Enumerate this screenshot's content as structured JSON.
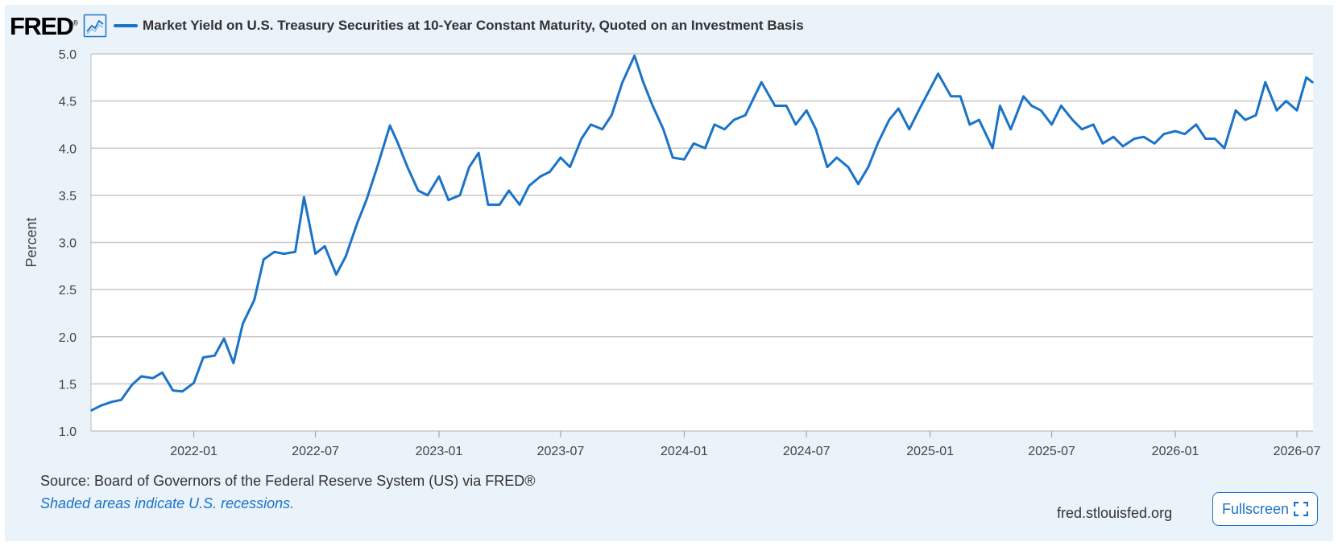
{
  "header": {
    "logo": "FRED",
    "logo_mark": "®",
    "graph_icon": "line-chart-icon",
    "title": "Market Yield on U.S. Treasury Securities at 10-Year Constant Maturity, Quoted on an Investment Basis"
  },
  "footer": {
    "source": "Source: Board of Governors of the Federal Reserve System (US) via FRED®",
    "note": "Shaded areas indicate U.S. recessions.",
    "site": "fred.stlouisfed.org",
    "fullscreen_label": "Fullscreen",
    "fullscreen_icon": "expand-icon"
  },
  "colors": {
    "series": "#1a73c8",
    "background": "#eaf2fa",
    "plot_background": "#ffffff",
    "grid": "#c8c8c8"
  },
  "chart_data": {
    "type": "line",
    "title": "Market Yield on U.S. Treasury Securities at 10-Year Constant Maturity, Quoted on an Investment Basis",
    "xlabel": "",
    "ylabel": "Percent",
    "ylim": [
      1.0,
      5.0
    ],
    "yticks": [
      "1.0",
      "1.5",
      "2.0",
      "2.5",
      "3.0",
      "3.5",
      "4.0",
      "4.5",
      "5.0"
    ],
    "xlim": [
      "2021-08-01",
      "2026-07-25"
    ],
    "xticks": [
      "2022-01",
      "2022-07",
      "2023-01",
      "2023-07",
      "2024-01",
      "2024-07",
      "2025-01",
      "2025-07",
      "2026-01",
      "2026-07"
    ],
    "grid": true,
    "legend": "top-left",
    "series": [
      {
        "name": "Market Yield on U.S. Treasury Securities at 10-Year Constant Maturity, Quoted on an Investment Basis",
        "x": [
          "2021-08-02",
          "2021-08-16",
          "2021-09-01",
          "2021-09-15",
          "2021-10-01",
          "2021-10-15",
          "2021-11-01",
          "2021-11-15",
          "2021-12-01",
          "2021-12-15",
          "2022-01-01",
          "2022-01-15",
          "2022-02-01",
          "2022-02-15",
          "2022-03-01",
          "2022-03-15",
          "2022-04-01",
          "2022-04-15",
          "2022-05-01",
          "2022-05-15",
          "2022-06-01",
          "2022-06-14",
          "2022-07-01",
          "2022-07-15",
          "2022-08-01",
          "2022-08-15",
          "2022-09-01",
          "2022-09-15",
          "2022-10-01",
          "2022-10-20",
          "2022-11-01",
          "2022-11-15",
          "2022-12-01",
          "2022-12-15",
          "2023-01-01",
          "2023-01-15",
          "2023-02-01",
          "2023-02-15",
          "2023-03-01",
          "2023-03-15",
          "2023-04-01",
          "2023-04-15",
          "2023-05-01",
          "2023-05-15",
          "2023-06-01",
          "2023-06-15",
          "2023-07-01",
          "2023-07-15",
          "2023-08-01",
          "2023-08-15",
          "2023-09-01",
          "2023-09-15",
          "2023-10-01",
          "2023-10-19",
          "2023-11-01",
          "2023-11-15",
          "2023-12-01",
          "2023-12-15",
          "2024-01-01",
          "2024-01-15",
          "2024-02-01",
          "2024-02-15",
          "2024-03-01",
          "2024-03-15",
          "2024-04-01",
          "2024-04-25",
          "2024-05-15",
          "2024-06-01",
          "2024-06-15",
          "2024-07-01",
          "2024-07-15",
          "2024-08-01",
          "2024-08-15",
          "2024-09-01",
          "2024-09-16",
          "2024-10-01",
          "2024-10-15",
          "2024-11-01",
          "2024-11-15",
          "2024-12-01",
          "2024-12-15",
          "2025-01-13",
          "2025-02-01",
          "2025-02-15",
          "2025-03-01",
          "2025-03-15",
          "2025-04-04",
          "2025-04-15",
          "2025-05-01",
          "2025-05-20",
          "2025-06-01",
          "2025-06-15",
          "2025-07-01",
          "2025-07-15",
          "2025-08-01",
          "2025-08-15",
          "2025-09-01",
          "2025-09-15",
          "2025-10-01",
          "2025-10-15",
          "2025-11-01",
          "2025-11-15",
          "2025-12-01",
          "2025-12-15",
          "2026-01-01",
          "2026-01-15",
          "2026-02-01",
          "2026-02-15",
          "2026-03-01",
          "2026-03-15",
          "2026-04-01",
          "2026-04-15",
          "2026-05-01",
          "2026-05-15",
          "2026-06-01",
          "2026-06-15",
          "2026-07-01",
          "2026-07-15",
          "2026-07-24"
        ],
        "values": [
          1.22,
          1.27,
          1.31,
          1.33,
          1.49,
          1.58,
          1.56,
          1.62,
          1.43,
          1.42,
          1.51,
          1.78,
          1.8,
          1.98,
          1.72,
          2.14,
          2.39,
          2.82,
          2.9,
          2.88,
          2.9,
          3.48,
          2.88,
          2.96,
          2.66,
          2.85,
          3.2,
          3.45,
          3.8,
          4.24,
          4.05,
          3.8,
          3.55,
          3.5,
          3.7,
          3.45,
          3.5,
          3.8,
          3.95,
          3.4,
          3.4,
          3.55,
          3.4,
          3.6,
          3.7,
          3.75,
          3.9,
          3.8,
          4.1,
          4.25,
          4.2,
          4.35,
          4.7,
          4.98,
          4.7,
          4.45,
          4.2,
          3.9,
          3.88,
          4.05,
          4.0,
          4.25,
          4.2,
          4.3,
          4.35,
          4.7,
          4.45,
          4.45,
          4.25,
          4.4,
          4.2,
          3.8,
          3.9,
          3.8,
          3.62,
          3.8,
          4.05,
          4.3,
          4.42,
          4.2,
          4.4,
          4.79,
          4.55,
          4.55,
          4.25,
          4.3,
          4.0,
          4.45,
          4.2,
          4.55,
          4.45,
          4.4,
          4.25,
          4.45,
          4.3,
          4.2,
          4.25,
          4.05,
          4.12,
          4.02,
          4.1,
          4.12,
          4.05,
          4.15,
          4.18,
          4.15,
          4.25,
          4.1,
          4.1,
          4.0,
          4.4,
          4.3,
          4.35,
          4.7,
          4.4,
          4.5,
          4.4,
          4.75,
          4.7
        ]
      }
    ]
  }
}
